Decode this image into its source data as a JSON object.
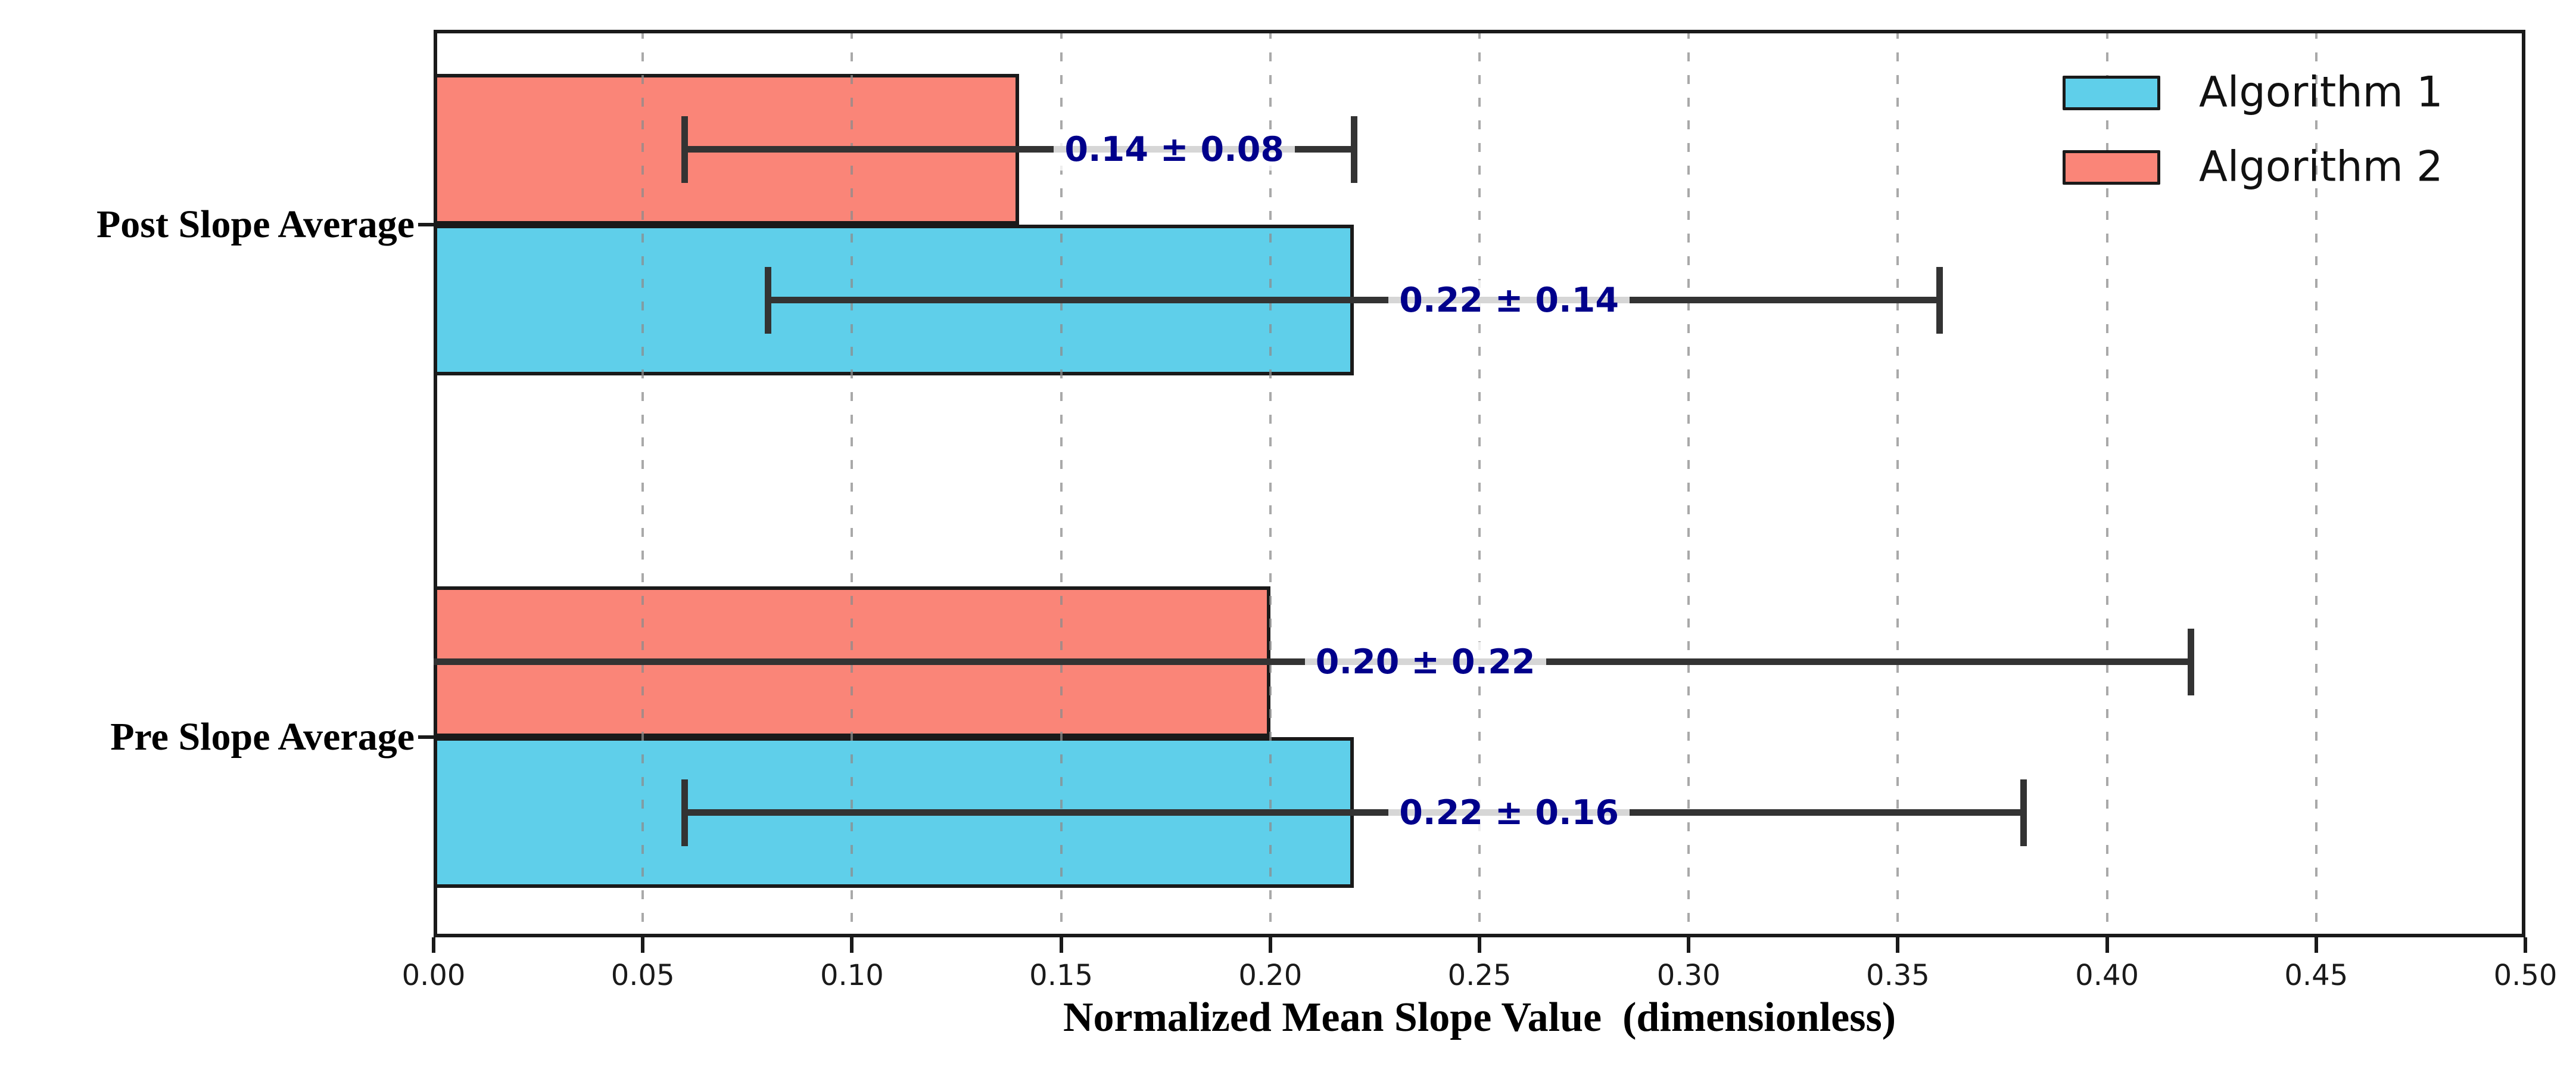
{
  "chart_data": {
    "type": "bar",
    "orientation": "horizontal",
    "title": "",
    "xlabel": "Normalized Mean Slope Value  (dimensionless)",
    "ylabel": "",
    "xlim": [
      0.0,
      0.5
    ],
    "xticks": [
      0.0,
      0.05,
      0.1,
      0.15,
      0.2,
      0.25,
      0.3,
      0.35,
      0.4,
      0.45,
      0.5
    ],
    "xtick_labels": [
      "0.00",
      "0.05",
      "0.10",
      "0.15",
      "0.20",
      "0.25",
      "0.30",
      "0.35",
      "0.40",
      "0.45",
      "0.50"
    ],
    "categories": [
      "Post Slope Average",
      "Pre Slope Average"
    ],
    "grid": {
      "axis": "x",
      "style": "dashed",
      "color": "#bcbcbc"
    },
    "legend": {
      "position": "upper right",
      "frame": false
    },
    "series": [
      {
        "name": "Algorithm 1",
        "color": "#5FCFEA",
        "values": [
          0.22,
          0.22
        ],
        "errors": [
          0.14,
          0.16
        ],
        "value_labels": [
          "0.22 ± 0.14",
          "0.22 ± 0.16"
        ]
      },
      {
        "name": "Algorithm 2",
        "color": "#FA8578",
        "values": [
          0.14,
          0.2
        ],
        "errors": [
          0.08,
          0.22
        ],
        "value_labels": [
          "0.14 ± 0.08",
          "0.20 ± 0.22"
        ]
      }
    ],
    "value_label_color": "#00008B",
    "bar_edge_color": "#1a1a1a",
    "error_bar_color": "#333333"
  }
}
